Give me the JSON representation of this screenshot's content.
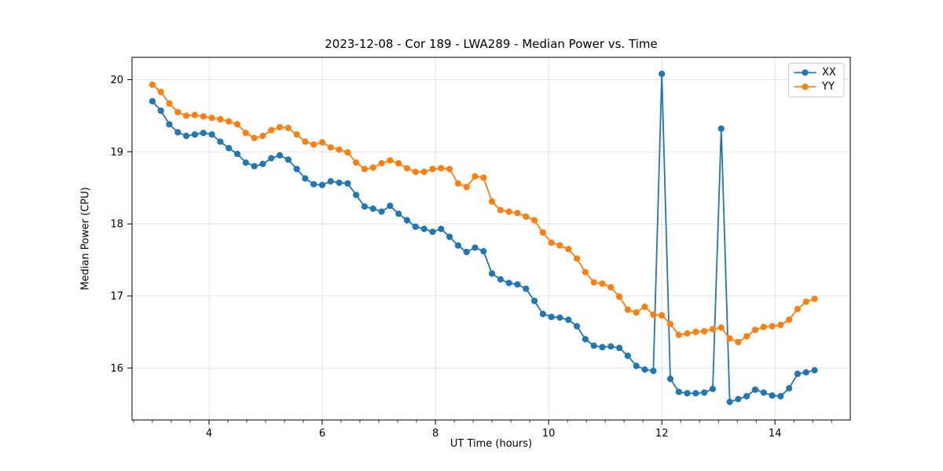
{
  "chart_data": {
    "type": "line",
    "title": "2023-12-08 - Cor 189 - LWA289 - Median Power vs. Time",
    "xlabel": "UT Time (hours)",
    "ylabel": "Median Power (CPU)",
    "xlim": [
      2.64,
      15.33
    ],
    "ylim": [
      15.28,
      20.31
    ],
    "xticks": [
      4,
      6,
      8,
      10,
      12,
      14
    ],
    "yticks": [
      16,
      17,
      18,
      19,
      20
    ],
    "x_minor_step": 0.3333333,
    "grid": true,
    "legend_position": "upper right",
    "x_start": 3.0,
    "x_step": 0.15,
    "series": [
      {
        "name": "XX",
        "color": "#1f77b4",
        "values": [
          19.7,
          19.57,
          19.38,
          19.27,
          19.22,
          19.24,
          19.26,
          19.24,
          19.14,
          19.05,
          18.97,
          18.85,
          18.8,
          18.83,
          18.91,
          18.95,
          18.89,
          18.76,
          18.63,
          18.55,
          18.54,
          18.59,
          18.57,
          18.56,
          18.4,
          18.24,
          18.21,
          18.17,
          18.25,
          18.14,
          18.05,
          17.96,
          17.93,
          17.89,
          17.93,
          17.82,
          17.7,
          17.61,
          17.67,
          17.62,
          17.31,
          17.23,
          17.18,
          17.16,
          17.1,
          16.93,
          16.75,
          16.71,
          16.7,
          16.67,
          16.58,
          16.4,
          16.31,
          16.29,
          16.3,
          16.28,
          16.17,
          16.03,
          15.98,
          15.96,
          20.08,
          15.85,
          15.67,
          15.65,
          15.65,
          15.66,
          15.71,
          19.32,
          15.53,
          15.57,
          15.61,
          15.7,
          15.66,
          15.62,
          15.61,
          15.72,
          15.92,
          15.94,
          15.97
        ]
      },
      {
        "name": "YY",
        "color": "#ff7f0e",
        "values": [
          19.93,
          19.83,
          19.67,
          19.55,
          19.5,
          19.51,
          19.49,
          19.47,
          19.45,
          19.42,
          19.38,
          19.26,
          19.19,
          19.22,
          19.3,
          19.34,
          19.33,
          19.24,
          19.14,
          19.1,
          19.13,
          19.06,
          19.03,
          18.99,
          18.85,
          18.76,
          18.78,
          18.84,
          18.88,
          18.84,
          18.77,
          18.72,
          18.72,
          18.76,
          18.77,
          18.76,
          18.56,
          18.51,
          18.66,
          18.64,
          18.31,
          18.19,
          18.17,
          18.15,
          18.1,
          18.05,
          17.88,
          17.74,
          17.7,
          17.65,
          17.52,
          17.33,
          17.19,
          17.17,
          17.12,
          16.99,
          16.81,
          16.77,
          16.85,
          16.74,
          16.73,
          16.61,
          16.46,
          16.48,
          16.5,
          16.51,
          16.54,
          16.56,
          16.41,
          16.36,
          16.44,
          16.53,
          16.57,
          16.58,
          16.6,
          16.67,
          16.82,
          16.92,
          16.96
        ]
      }
    ]
  }
}
